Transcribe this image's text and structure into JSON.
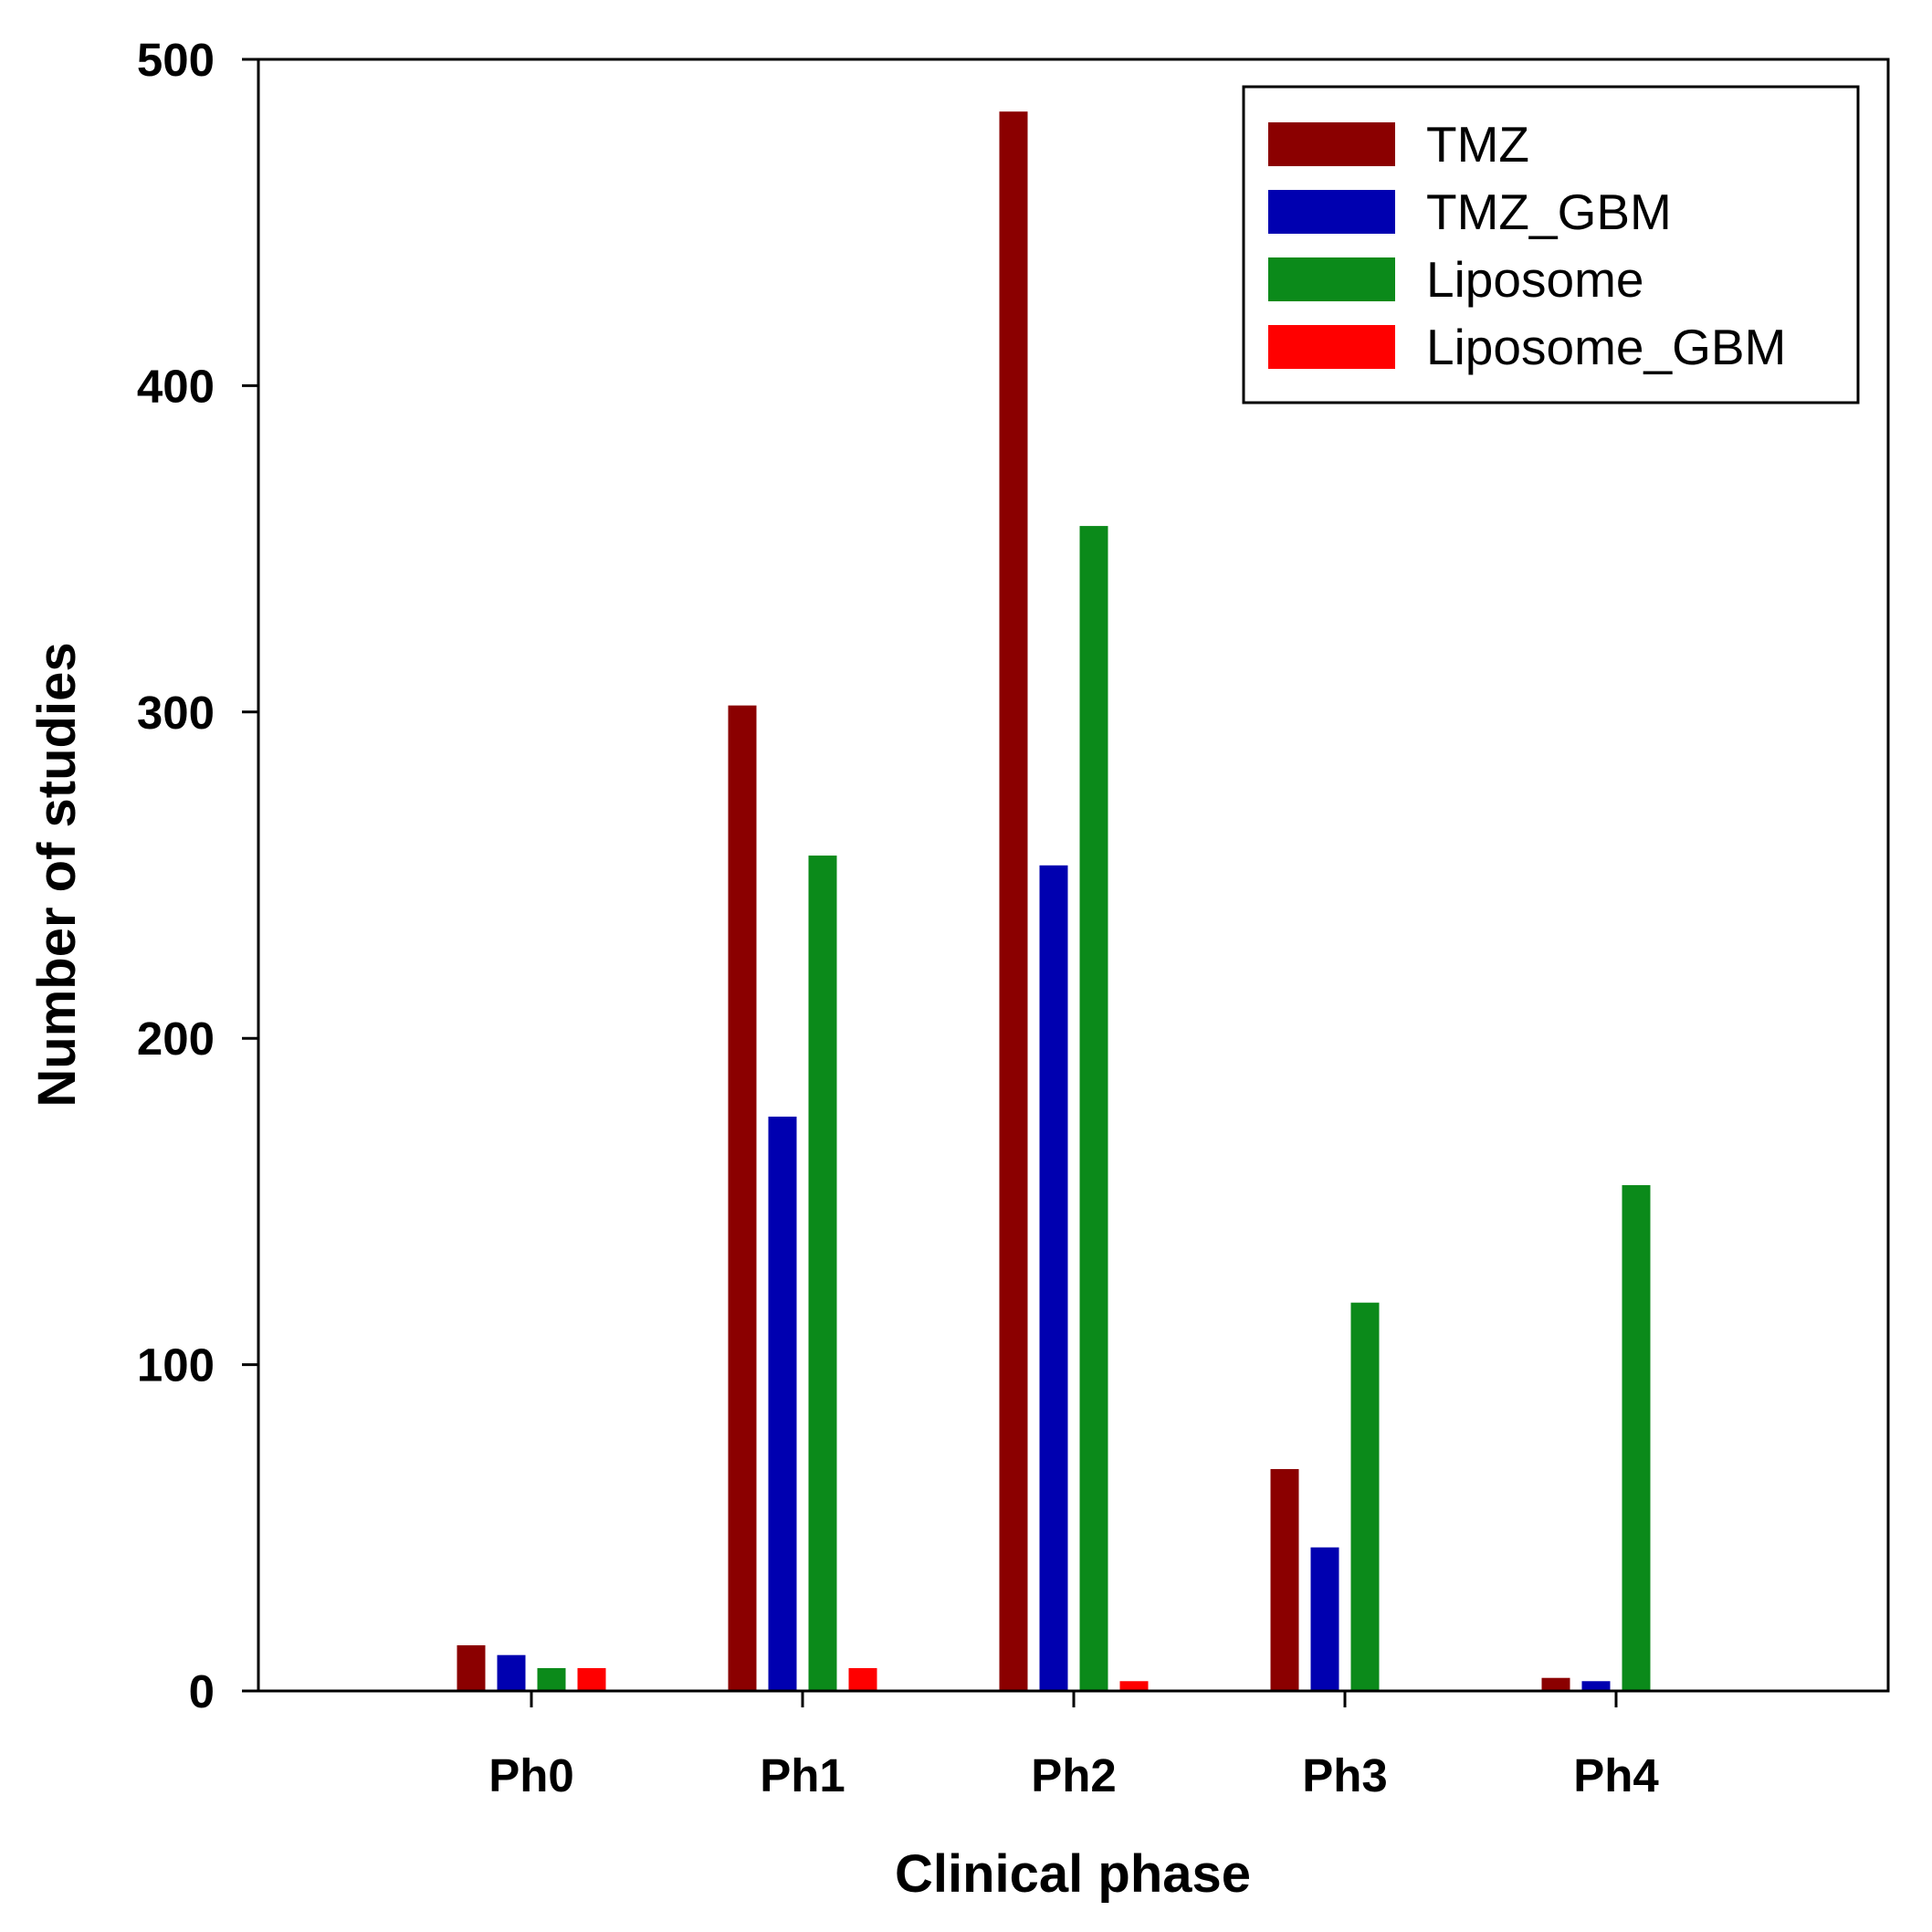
{
  "chart_data": {
    "type": "bar",
    "title": "",
    "xlabel": "Clinical phase",
    "ylabel": "Number of studies",
    "categories": [
      "Ph0",
      "Ph1",
      "Ph2",
      "Ph3",
      "Ph4"
    ],
    "ylim": [
      0,
      500
    ],
    "yticks": [
      "0",
      "100",
      "200",
      "300",
      "400",
      "500"
    ],
    "grid": false,
    "legend_position": "top-right",
    "series": [
      {
        "name": "TMZ",
        "color": "#8b0000",
        "values": [
          14,
          302,
          484,
          68,
          4
        ]
      },
      {
        "name": "TMZ_GBM",
        "color": "#0000b0",
        "values": [
          11,
          176,
          253,
          44,
          3
        ]
      },
      {
        "name": "Liposome",
        "color": "#0b8a1a",
        "values": [
          7,
          256,
          357,
          119,
          155
        ]
      },
      {
        "name": "Liposome_GBM",
        "color": "#ff0000",
        "values": [
          7,
          7,
          3,
          0,
          0
        ]
      }
    ]
  }
}
